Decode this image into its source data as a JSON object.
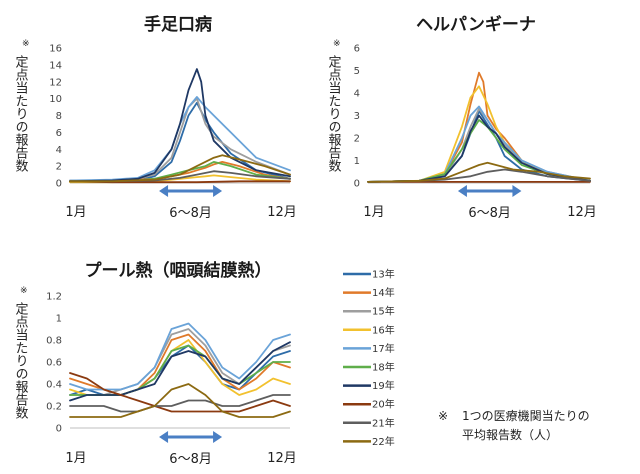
{
  "chart_data": [
    {
      "type": "line",
      "title": "手足口病",
      "ylabel_mark": "※",
      "ylabel": "定点当たりの報告数",
      "ylim": [
        0,
        16
      ],
      "yticks": [
        "0",
        "2",
        "4",
        "6",
        "8",
        "10",
        "12",
        "14",
        "16"
      ],
      "xlabels": [
        "1月",
        "6～8月",
        "12月"
      ],
      "xrange_week": [
        0,
        52
      ],
      "highlight_weeks": [
        22,
        35
      ],
      "series": [
        {
          "name": "13年",
          "x": [
            0,
            10,
            16,
            20,
            24,
            26,
            28,
            30,
            32,
            34,
            38,
            44,
            52
          ],
          "values": [
            0.2,
            0.2,
            0.3,
            0.8,
            2.5,
            5,
            8,
            9.5,
            7.5,
            6,
            3.5,
            1.5,
            0.5
          ]
        },
        {
          "name": "14年",
          "x": [
            0,
            10,
            16,
            20,
            24,
            28,
            30,
            32,
            34,
            36,
            40,
            46,
            52
          ],
          "values": [
            0.2,
            0.3,
            0.4,
            0.5,
            0.8,
            1.2,
            1.5,
            1.8,
            2.2,
            2.5,
            2,
            1,
            0.5
          ]
        },
        {
          "name": "15年",
          "x": [
            0,
            10,
            16,
            20,
            24,
            26,
            28,
            30,
            32,
            34,
            38,
            44,
            52
          ],
          "values": [
            0.3,
            0.3,
            0.5,
            1,
            3,
            6,
            9,
            10,
            7,
            5.5,
            4,
            2.5,
            1
          ]
        },
        {
          "name": "16年",
          "x": [
            0,
            10,
            18,
            22,
            26,
            30,
            32,
            34,
            38,
            44,
            52
          ],
          "values": [
            0.1,
            0.1,
            0.2,
            0.3,
            0.5,
            0.7,
            0.8,
            0.9,
            0.7,
            0.4,
            0.2
          ]
        },
        {
          "name": "17年",
          "x": [
            0,
            10,
            16,
            20,
            24,
            26,
            28,
            30,
            32,
            34,
            38,
            44,
            52
          ],
          "values": [
            0.3,
            0.4,
            0.6,
            1.5,
            4,
            7,
            9,
            10.2,
            9,
            8,
            6,
            3,
            1.5
          ]
        },
        {
          "name": "18年",
          "x": [
            0,
            10,
            16,
            20,
            24,
            28,
            32,
            34,
            38,
            44,
            52
          ],
          "values": [
            0.2,
            0.2,
            0.3,
            0.5,
            1,
            1.5,
            2,
            2.5,
            2,
            1,
            0.5
          ]
        },
        {
          "name": "19年",
          "x": [
            0,
            10,
            16,
            20,
            24,
            26,
            28,
            30,
            31,
            32,
            34,
            38,
            44,
            52
          ],
          "values": [
            0.2,
            0.3,
            0.5,
            1.2,
            4,
            7,
            11,
            13.5,
            12,
            8,
            5,
            3,
            1.5,
            0.8
          ]
        },
        {
          "name": "20年",
          "x": [
            0,
            10,
            20,
            30,
            40,
            52
          ],
          "values": [
            0.2,
            0.1,
            0.1,
            0.1,
            0.2,
            0.2
          ]
        },
        {
          "name": "21年",
          "x": [
            0,
            10,
            20,
            26,
            30,
            34,
            38,
            44,
            52
          ],
          "values": [
            0.2,
            0.2,
            0.3,
            0.6,
            1,
            1.4,
            1.2,
            0.8,
            0.5
          ]
        },
        {
          "name": "22年",
          "x": [
            0,
            10,
            20,
            26,
            30,
            34,
            36,
            40,
            46,
            52
          ],
          "values": [
            0.2,
            0.2,
            0.4,
            1,
            2,
            3,
            3.3,
            2.8,
            2,
            1
          ]
        }
      ]
    },
    {
      "type": "line",
      "title": "ヘルパンギーナ",
      "ylabel_mark": "※",
      "ylabel": "定点当たりの報告数",
      "ylim": [
        0,
        6
      ],
      "yticks": [
        "0",
        "1",
        "2",
        "3",
        "4",
        "5",
        "6"
      ],
      "xlabels": [
        "1月",
        "6～8月",
        "12月"
      ],
      "xrange_week": [
        0,
        52
      ],
      "highlight_weeks": [
        22,
        35
      ],
      "series": [
        {
          "name": "13年",
          "x": [
            0,
            12,
            18,
            22,
            24,
            26,
            28,
            30,
            32,
            36,
            42,
            52
          ],
          "values": [
            0.05,
            0.1,
            0.3,
            1.2,
            2.2,
            3.2,
            2.6,
            2,
            1.2,
            0.6,
            0.3,
            0.1
          ]
        },
        {
          "name": "14年",
          "x": [
            0,
            12,
            18,
            22,
            24,
            26,
            27,
            28,
            30,
            32,
            36,
            42,
            52
          ],
          "values": [
            0.05,
            0.1,
            0.4,
            1.8,
            3.5,
            4.9,
            4.5,
            3,
            2.4,
            2,
            1,
            0.4,
            0.1
          ]
        },
        {
          "name": "15年",
          "x": [
            0,
            12,
            18,
            22,
            24,
            26,
            28,
            30,
            32,
            36,
            42,
            52
          ],
          "values": [
            0.05,
            0.1,
            0.3,
            1.5,
            2.5,
            3.3,
            2.8,
            2.2,
            1.7,
            1,
            0.5,
            0.1
          ]
        },
        {
          "name": "16年",
          "x": [
            0,
            12,
            18,
            22,
            24,
            26,
            28,
            30,
            32,
            36,
            42,
            52
          ],
          "values": [
            0.05,
            0.1,
            0.5,
            2.5,
            3.8,
            4.3,
            3.5,
            2.5,
            1.8,
            1,
            0.4,
            0.1
          ]
        },
        {
          "name": "17年",
          "x": [
            0,
            12,
            18,
            22,
            24,
            26,
            28,
            30,
            32,
            36,
            42,
            52
          ],
          "values": [
            0.05,
            0.1,
            0.4,
            2,
            3,
            3.4,
            2.8,
            2.2,
            1.8,
            1,
            0.5,
            0.1
          ]
        },
        {
          "name": "18年",
          "x": [
            0,
            12,
            18,
            22,
            24,
            26,
            28,
            30,
            32,
            36,
            42,
            52
          ],
          "values": [
            0.05,
            0.1,
            0.4,
            1.5,
            2.2,
            2.8,
            2.5,
            2,
            1.5,
            0.8,
            0.4,
            0.1
          ]
        },
        {
          "name": "19年",
          "x": [
            0,
            12,
            18,
            22,
            24,
            26,
            28,
            30,
            32,
            36,
            42,
            52
          ],
          "values": [
            0.05,
            0.1,
            0.3,
            1.2,
            2.3,
            3,
            2.5,
            2.2,
            1.6,
            0.9,
            0.4,
            0.1
          ]
        },
        {
          "name": "20年",
          "x": [
            0,
            12,
            20,
            30,
            40,
            52
          ],
          "values": [
            0.05,
            0.05,
            0.05,
            0.05,
            0.05,
            0.05
          ]
        },
        {
          "name": "21年",
          "x": [
            0,
            12,
            18,
            24,
            28,
            32,
            36,
            42,
            52
          ],
          "values": [
            0.05,
            0.1,
            0.15,
            0.3,
            0.5,
            0.6,
            0.5,
            0.3,
            0.1
          ]
        },
        {
          "name": "22年",
          "x": [
            0,
            12,
            18,
            22,
            26,
            28,
            30,
            34,
            40,
            46,
            52
          ],
          "values": [
            0.05,
            0.1,
            0.2,
            0.5,
            0.8,
            0.9,
            0.8,
            0.6,
            0.5,
            0.3,
            0.2
          ]
        }
      ]
    },
    {
      "type": "line",
      "title": "プール熱（咽頭結膜熱）",
      "ylabel_mark": "※",
      "ylabel": "定点当たりの報告数",
      "ylim": [
        0,
        1.2
      ],
      "yticks": [
        "0",
        "0.2",
        "0.4",
        "0.6",
        "0.8",
        "1",
        "1.2"
      ],
      "xlabels": [
        "1月",
        "6～8月",
        "12月"
      ],
      "xrange_week": [
        0,
        52
      ],
      "highlight_weeks": [
        22,
        35
      ],
      "series": [
        {
          "name": "13年",
          "x": [
            0,
            4,
            8,
            12,
            16,
            20,
            24,
            28,
            32,
            36,
            40,
            44,
            48,
            52
          ],
          "values": [
            0.3,
            0.35,
            0.3,
            0.3,
            0.35,
            0.45,
            0.65,
            0.75,
            0.6,
            0.4,
            0.35,
            0.5,
            0.65,
            0.7
          ]
        },
        {
          "name": "14年",
          "x": [
            0,
            4,
            8,
            12,
            16,
            20,
            24,
            28,
            32,
            36,
            40,
            44,
            48,
            52
          ],
          "values": [
            0.45,
            0.4,
            0.35,
            0.3,
            0.35,
            0.5,
            0.8,
            0.85,
            0.7,
            0.45,
            0.35,
            0.45,
            0.6,
            0.55
          ]
        },
        {
          "name": "15年",
          "x": [
            0,
            4,
            8,
            12,
            16,
            20,
            24,
            28,
            32,
            36,
            40,
            44,
            48,
            52
          ],
          "values": [
            0.3,
            0.3,
            0.3,
            0.35,
            0.4,
            0.55,
            0.85,
            0.9,
            0.75,
            0.5,
            0.4,
            0.55,
            0.7,
            0.75
          ]
        },
        {
          "name": "16年",
          "x": [
            0,
            4,
            8,
            12,
            16,
            20,
            24,
            28,
            32,
            36,
            40,
            44,
            48,
            52
          ],
          "values": [
            0.35,
            0.3,
            0.3,
            0.3,
            0.35,
            0.45,
            0.7,
            0.8,
            0.6,
            0.4,
            0.3,
            0.35,
            0.45,
            0.4
          ]
        },
        {
          "name": "17年",
          "x": [
            0,
            4,
            8,
            12,
            16,
            20,
            24,
            28,
            32,
            36,
            40,
            44,
            48,
            52
          ],
          "values": [
            0.4,
            0.35,
            0.35,
            0.35,
            0.4,
            0.55,
            0.9,
            0.95,
            0.8,
            0.55,
            0.45,
            0.6,
            0.8,
            0.85
          ]
        },
        {
          "name": "18年",
          "x": [
            0,
            4,
            8,
            12,
            16,
            20,
            24,
            28,
            32,
            36,
            40,
            44,
            48,
            52
          ],
          "values": [
            0.3,
            0.3,
            0.3,
            0.3,
            0.35,
            0.45,
            0.7,
            0.75,
            0.65,
            0.45,
            0.4,
            0.5,
            0.6,
            0.6
          ]
        },
        {
          "name": "19年",
          "x": [
            0,
            4,
            8,
            12,
            16,
            20,
            24,
            28,
            32,
            36,
            40,
            44,
            48,
            52
          ],
          "values": [
            0.25,
            0.3,
            0.3,
            0.3,
            0.35,
            0.4,
            0.65,
            0.7,
            0.65,
            0.45,
            0.4,
            0.55,
            0.7,
            0.78
          ]
        },
        {
          "name": "20年",
          "x": [
            0,
            4,
            8,
            12,
            16,
            20,
            24,
            28,
            32,
            36,
            40,
            44,
            48,
            52
          ],
          "values": [
            0.5,
            0.45,
            0.35,
            0.3,
            0.25,
            0.2,
            0.15,
            0.15,
            0.15,
            0.15,
            0.15,
            0.2,
            0.25,
            0.2
          ]
        },
        {
          "name": "21年",
          "x": [
            0,
            4,
            8,
            12,
            16,
            20,
            24,
            28,
            32,
            36,
            40,
            44,
            48,
            52
          ],
          "values": [
            0.2,
            0.2,
            0.2,
            0.15,
            0.15,
            0.2,
            0.2,
            0.25,
            0.25,
            0.2,
            0.2,
            0.25,
            0.3,
            0.3
          ]
        },
        {
          "name": "22年",
          "x": [
            0,
            4,
            8,
            12,
            16,
            20,
            24,
            28,
            32,
            36,
            40,
            44,
            48,
            52
          ],
          "values": [
            0.1,
            0.1,
            0.1,
            0.1,
            0.15,
            0.2,
            0.35,
            0.4,
            0.3,
            0.15,
            0.1,
            0.1,
            0.1,
            0.15
          ]
        }
      ]
    }
  ],
  "legend": [
    {
      "label": "13年",
      "color": "#2e6ca8"
    },
    {
      "label": "14年",
      "color": "#e07a2a"
    },
    {
      "label": "15年",
      "color": "#9e9e9e"
    },
    {
      "label": "16年",
      "color": "#f2c12e"
    },
    {
      "label": "17年",
      "color": "#6aa3d8"
    },
    {
      "label": "18年",
      "color": "#5fae4a"
    },
    {
      "label": "19年",
      "color": "#1f3864"
    },
    {
      "label": "20年",
      "color": "#8b3a10"
    },
    {
      "label": "21年",
      "color": "#5e5e5e"
    },
    {
      "label": "22年",
      "color": "#8c6a12"
    }
  ],
  "note": {
    "mark": "※",
    "line1": "1つの医療機関当たりの",
    "line2": "平均報告数（人）"
  },
  "arrow_color": "#4a7fc4"
}
